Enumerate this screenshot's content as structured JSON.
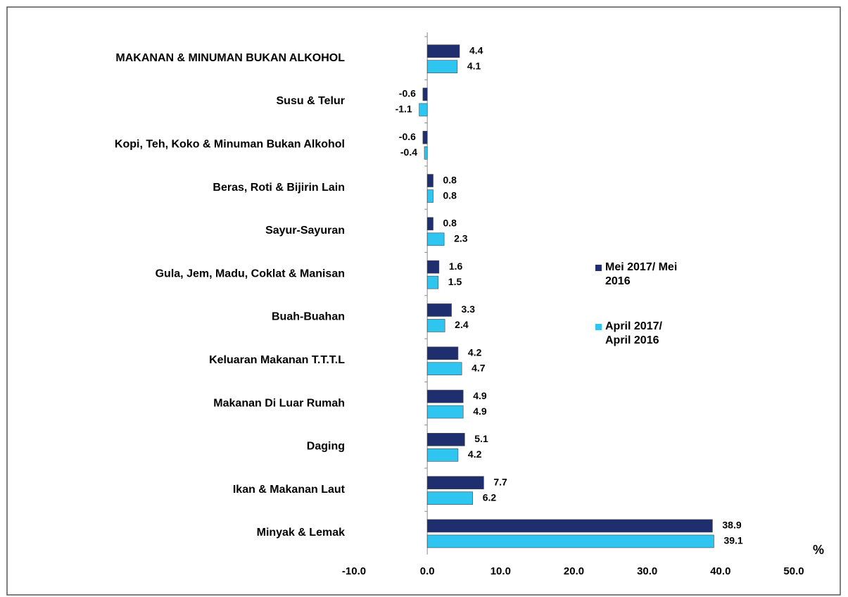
{
  "chart_data": {
    "type": "bar",
    "orientation": "horizontal",
    "categories": [
      "MAKANAN & MINUMAN BUKAN ALKOHOL",
      "Susu & Telur",
      "Kopi, Teh, Koko & Minuman Bukan Alkohol",
      "Beras, Roti & Bijirin Lain",
      "Sayur-Sayuran",
      "Gula, Jem, Madu, Coklat & Manisan",
      "Buah-Buahan",
      "Keluaran Makanan T.T.T.L",
      "Makanan Di Luar Rumah",
      "Daging",
      "Ikan & Makanan Laut",
      "Minyak & Lemak"
    ],
    "series": [
      {
        "name": "Mei 2017/ Mei 2016",
        "color": "#1f2e6e",
        "values": [
          4.4,
          -0.6,
          -0.6,
          0.8,
          0.8,
          1.6,
          3.3,
          4.2,
          4.9,
          5.1,
          7.7,
          38.9
        ]
      },
      {
        "name": "April 2017/ April 2016",
        "color": "#2ec5f0",
        "values": [
          4.1,
          -1.1,
          -0.4,
          0.8,
          2.3,
          1.5,
          2.4,
          4.7,
          4.9,
          4.2,
          6.2,
          39.1
        ]
      }
    ],
    "xlim": [
      -10,
      50
    ],
    "xticks": [
      {
        "value": -10,
        "label": "-10.0"
      },
      {
        "value": 0,
        "label": "0.0"
      },
      {
        "value": 10,
        "label": "10.0"
      },
      {
        "value": 20,
        "label": "20.0"
      },
      {
        "value": 30,
        "label": "30.0"
      },
      {
        "value": 40,
        "label": "40.0"
      },
      {
        "value": 50,
        "label": "50.0"
      }
    ],
    "x_label": "%",
    "grid": false,
    "legend": "right"
  }
}
